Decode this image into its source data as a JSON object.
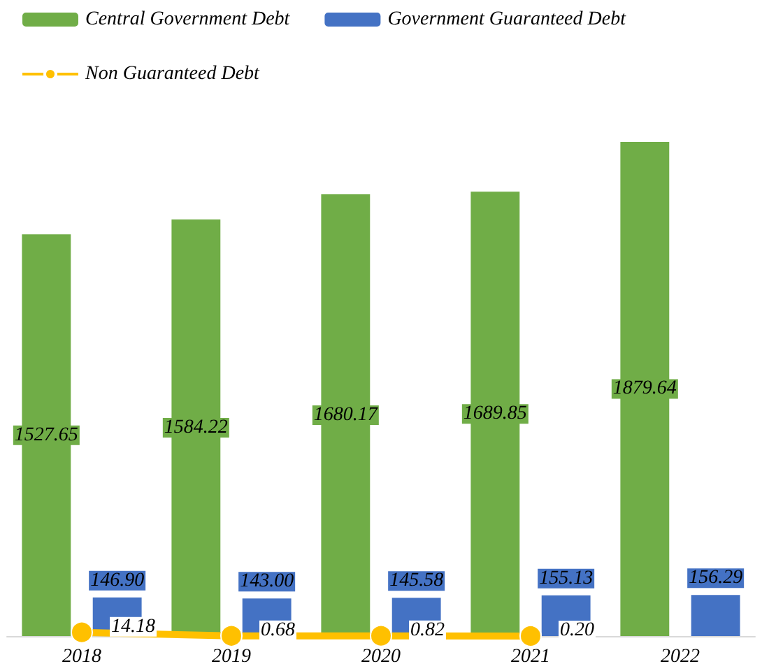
{
  "chart_data": {
    "type": "bar",
    "categories": [
      "2018",
      "2019",
      "2020",
      "2021",
      "2022"
    ],
    "series": [
      {
        "name": "Central Government Debt",
        "color": "#70ad47",
        "values": [
          1527.65,
          1584.22,
          1680.17,
          1689.85,
          1879.64
        ],
        "value_labels": [
          "1527.65",
          "1584.22",
          "1680.17",
          "1689.85",
          "1879.64"
        ]
      },
      {
        "name": "Government Guaranteed Debt",
        "color": "#4472c4",
        "values": [
          146.9,
          143.0,
          145.58,
          155.13,
          156.29
        ],
        "value_labels": [
          "146.90",
          "143.00",
          "145.58",
          "155.13",
          "156.29"
        ]
      },
      {
        "name": "Non Guaranteed Debt",
        "type": "line",
        "color": "#ffc000",
        "marker": "circle",
        "values": [
          14.18,
          0.68,
          0.82,
          0.2,
          null
        ],
        "value_labels": [
          "14.18",
          "0.68",
          "0.82",
          "0.20",
          null
        ]
      }
    ],
    "legend": "top left"
  }
}
